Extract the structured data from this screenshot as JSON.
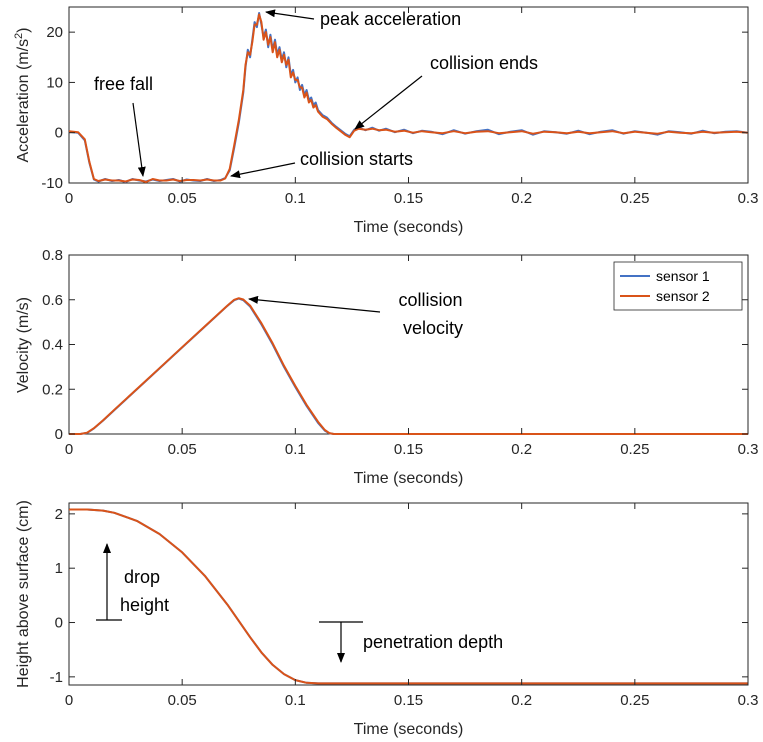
{
  "chart_data": [
    {
      "type": "line",
      "xlabel": "Time (seconds)",
      "ylabel": "Acceleration (m/s2)",
      "ylabel_parts": {
        "base": "Acceleration (m/s",
        "sup": "2",
        "end": ")"
      },
      "xlim": [
        0,
        0.3
      ],
      "ylim": [
        -10,
        25
      ],
      "xticks": [
        0,
        0.05,
        0.1,
        0.15,
        0.2,
        0.25,
        0.3
      ],
      "xtick_labels": [
        "0",
        "0.05",
        "0.1",
        "0.15",
        "0.2",
        "0.25",
        "0.3"
      ],
      "yticks": [
        -10,
        0,
        10,
        20
      ],
      "ytick_labels": [
        "-10",
        "0",
        "10",
        "20"
      ],
      "grid": false,
      "series": [
        {
          "name": "sensor 1",
          "color": "#4472C4",
          "x": [
            0,
            0.004,
            0.007,
            0.009,
            0.011,
            0.013,
            0.016,
            0.019,
            0.022,
            0.025,
            0.028,
            0.031,
            0.034,
            0.037,
            0.04,
            0.043,
            0.046,
            0.049,
            0.052,
            0.055,
            0.058,
            0.061,
            0.064,
            0.067,
            0.069,
            0.071,
            0.073,
            0.075,
            0.077,
            0.078,
            0.079,
            0.08,
            0.081,
            0.082,
            0.083,
            0.084,
            0.085,
            0.086,
            0.087,
            0.088,
            0.089,
            0.09,
            0.091,
            0.092,
            0.093,
            0.094,
            0.095,
            0.096,
            0.097,
            0.098,
            0.099,
            0.1,
            0.101,
            0.102,
            0.103,
            0.104,
            0.105,
            0.106,
            0.107,
            0.108,
            0.109,
            0.11,
            0.112,
            0.114,
            0.116,
            0.118,
            0.12,
            0.122,
            0.124,
            0.126,
            0.128,
            0.131,
            0.134,
            0.137,
            0.14,
            0.144,
            0.148,
            0.152,
            0.156,
            0.16,
            0.165,
            0.17,
            0.175,
            0.18,
            0.185,
            0.19,
            0.195,
            0.2,
            0.205,
            0.21,
            0.215,
            0.22,
            0.225,
            0.23,
            0.235,
            0.24,
            0.245,
            0.25,
            0.255,
            0.26,
            0.265,
            0.27,
            0.275,
            0.28,
            0.285,
            0.29,
            0.295,
            0.3
          ],
          "y": [
            0.2,
            0.0,
            -1.5,
            -6.0,
            -9.3,
            -9.7,
            -9.2,
            -9.6,
            -9.4,
            -9.8,
            -9.2,
            -9.5,
            -9.7,
            -9.3,
            -9.6,
            -9.4,
            -9.2,
            -9.7,
            -9.3,
            -9.5,
            -9.6,
            -9.2,
            -9.6,
            -9.4,
            -9.0,
            -7.5,
            -3.0,
            2.0,
            8.0,
            13.0,
            16.5,
            15.0,
            18.5,
            22.0,
            21.0,
            23.8,
            21.5,
            19.0,
            20.5,
            17.0,
            19.5,
            16.5,
            18.5,
            15.5,
            17.0,
            14.5,
            16.0,
            13.0,
            15.0,
            11.5,
            12.5,
            10.0,
            11.0,
            8.5,
            9.5,
            7.5,
            8.5,
            6.5,
            7.0,
            5.5,
            6.0,
            4.5,
            3.5,
            3.0,
            2.0,
            1.2,
            0.5,
            -0.2,
            -0.7,
            0.6,
            1.0,
            0.5,
            1.0,
            0.4,
            0.8,
            0.1,
            0.6,
            -0.1,
            0.4,
            0.2,
            -0.3,
            0.5,
            -0.2,
            0.3,
            0.6,
            -0.3,
            0.2,
            0.5,
            -0.4,
            0.3,
            0.1,
            -0.2,
            0.4,
            -0.3,
            0.2,
            0.5,
            -0.2,
            0.3,
            0.0,
            -0.4,
            0.3,
            0.1,
            -0.2,
            0.4,
            -0.1,
            0.2,
            0.3,
            0.0
          ]
        },
        {
          "name": "sensor 2",
          "color": "#D95319",
          "x": [
            0,
            0.004,
            0.007,
            0.009,
            0.011,
            0.013,
            0.016,
            0.019,
            0.022,
            0.025,
            0.028,
            0.031,
            0.034,
            0.037,
            0.04,
            0.043,
            0.046,
            0.049,
            0.052,
            0.055,
            0.058,
            0.061,
            0.064,
            0.067,
            0.069,
            0.071,
            0.073,
            0.075,
            0.077,
            0.078,
            0.079,
            0.08,
            0.081,
            0.082,
            0.083,
            0.084,
            0.085,
            0.086,
            0.087,
            0.088,
            0.089,
            0.09,
            0.091,
            0.092,
            0.093,
            0.094,
            0.095,
            0.096,
            0.097,
            0.098,
            0.099,
            0.1,
            0.101,
            0.102,
            0.103,
            0.104,
            0.105,
            0.106,
            0.107,
            0.108,
            0.109,
            0.11,
            0.112,
            0.114,
            0.116,
            0.118,
            0.12,
            0.122,
            0.124,
            0.126,
            0.128,
            0.131,
            0.134,
            0.137,
            0.14,
            0.144,
            0.148,
            0.152,
            0.156,
            0.16,
            0.165,
            0.17,
            0.175,
            0.18,
            0.185,
            0.19,
            0.195,
            0.2,
            0.205,
            0.21,
            0.215,
            0.22,
            0.225,
            0.23,
            0.235,
            0.24,
            0.245,
            0.25,
            0.255,
            0.26,
            0.265,
            0.27,
            0.275,
            0.28,
            0.285,
            0.29,
            0.295,
            0.3
          ],
          "y": [
            0.3,
            0.1,
            -1.3,
            -5.8,
            -9.2,
            -9.6,
            -9.3,
            -9.5,
            -9.5,
            -9.7,
            -9.3,
            -9.4,
            -9.8,
            -9.2,
            -9.5,
            -9.5,
            -9.3,
            -9.6,
            -9.4,
            -9.4,
            -9.5,
            -9.3,
            -9.5,
            -9.5,
            -9.1,
            -7.2,
            -2.5,
            2.5,
            8.5,
            13.5,
            16.0,
            15.5,
            18.0,
            21.5,
            21.5,
            23.5,
            22.0,
            18.5,
            20.0,
            17.5,
            19.0,
            16.0,
            18.0,
            15.0,
            16.5,
            14.0,
            15.5,
            13.5,
            14.5,
            11.0,
            12.0,
            10.5,
            10.5,
            9.0,
            9.0,
            7.0,
            8.0,
            6.0,
            6.5,
            5.0,
            5.5,
            4.2,
            3.2,
            2.7,
            1.8,
            1.0,
            0.3,
            -0.4,
            -0.9,
            0.4,
            0.8,
            0.6,
            0.8,
            0.5,
            0.6,
            0.2,
            0.4,
            0.0,
            0.3,
            0.1,
            -0.1,
            0.3,
            -0.1,
            0.2,
            0.3,
            -0.1,
            0.1,
            0.3,
            -0.2,
            0.2,
            0.1,
            -0.1,
            0.2,
            -0.1,
            0.1,
            0.3,
            -0.1,
            0.2,
            0.0,
            -0.2,
            0.2,
            0.0,
            -0.1,
            0.2,
            0.0,
            0.1,
            0.2,
            0.0
          ]
        }
      ],
      "annotations": [
        {
          "text": "free fall",
          "target": [
            0.032,
            -9.4
          ]
        },
        {
          "text": "peak acceleration",
          "target": [
            0.085,
            23.6
          ]
        },
        {
          "text": "collision ends",
          "target": [
            0.125,
            -0.7
          ]
        },
        {
          "text": "collision starts",
          "target": [
            0.072,
            -9.0
          ]
        }
      ]
    },
    {
      "type": "line",
      "xlabel": "Time (seconds)",
      "ylabel": "Velocity (m/s)",
      "xlim": [
        0,
        0.3
      ],
      "ylim": [
        0,
        0.8
      ],
      "xticks": [
        0,
        0.05,
        0.1,
        0.15,
        0.2,
        0.25,
        0.3
      ],
      "xtick_labels": [
        "0",
        "0.05",
        "0.1",
        "0.15",
        "0.2",
        "0.25",
        "0.3"
      ],
      "yticks": [
        0,
        0.2,
        0.4,
        0.6,
        0.8
      ],
      "ytick_labels": [
        "0",
        "0.2",
        "0.4",
        "0.6",
        "0.8"
      ],
      "grid": false,
      "legend": {
        "placement": "top-right",
        "entries": [
          "sensor 1",
          "sensor 2"
        ]
      },
      "series": [
        {
          "name": "sensor 1",
          "color": "#4472C4",
          "x": [
            0,
            0.005,
            0.008,
            0.011,
            0.015,
            0.02,
            0.03,
            0.04,
            0.05,
            0.06,
            0.07,
            0.073,
            0.075,
            0.077,
            0.08,
            0.085,
            0.09,
            0.095,
            0.1,
            0.105,
            0.11,
            0.113,
            0.115,
            0.117,
            0.12,
            0.15,
            0.2,
            0.25,
            0.3
          ],
          "y": [
            0,
            0,
            0.005,
            0.025,
            0.06,
            0.107,
            0.2,
            0.293,
            0.387,
            0.48,
            0.573,
            0.598,
            0.605,
            0.598,
            0.57,
            0.49,
            0.4,
            0.3,
            0.21,
            0.125,
            0.05,
            0.015,
            0.003,
            0,
            0,
            0,
            0,
            0,
            0
          ]
        },
        {
          "name": "sensor 2",
          "color": "#D95319",
          "x": [
            0,
            0.005,
            0.008,
            0.011,
            0.015,
            0.02,
            0.03,
            0.04,
            0.05,
            0.06,
            0.07,
            0.073,
            0.075,
            0.077,
            0.08,
            0.085,
            0.09,
            0.095,
            0.1,
            0.105,
            0.11,
            0.113,
            0.115,
            0.117,
            0.12,
            0.15,
            0.2,
            0.25,
            0.3
          ],
          "y": [
            0,
            0,
            0.006,
            0.026,
            0.061,
            0.108,
            0.201,
            0.294,
            0.388,
            0.481,
            0.574,
            0.6,
            0.607,
            0.601,
            0.574,
            0.495,
            0.405,
            0.305,
            0.215,
            0.13,
            0.055,
            0.018,
            0.004,
            0,
            0,
            0,
            0,
            0,
            0
          ]
        }
      ],
      "annotations": [
        {
          "text": "collision\nvelocity",
          "lines": [
            "collision",
            "velocity"
          ],
          "target": [
            0.077,
            0.6
          ]
        }
      ]
    },
    {
      "type": "line",
      "xlabel": "Time (seconds)",
      "ylabel": "Height above surface (cm)",
      "xlim": [
        0,
        0.3
      ],
      "ylim": [
        -1.15,
        2.2
      ],
      "xticks": [
        0,
        0.05,
        0.1,
        0.15,
        0.2,
        0.25,
        0.3
      ],
      "xtick_labels": [
        "0",
        "0.05",
        "0.1",
        "0.15",
        "0.2",
        "0.25",
        "0.3"
      ],
      "yticks": [
        -1,
        0,
        1,
        2
      ],
      "ytick_labels": [
        "-1",
        "0",
        "1",
        "2"
      ],
      "grid": false,
      "series": [
        {
          "name": "sensor 1",
          "color": "#4472C4",
          "x": [
            0,
            0.005,
            0.008,
            0.015,
            0.02,
            0.03,
            0.04,
            0.05,
            0.06,
            0.07,
            0.075,
            0.08,
            0.085,
            0.09,
            0.095,
            0.1,
            0.105,
            0.11,
            0.115,
            0.12,
            0.15,
            0.2,
            0.25,
            0.3
          ],
          "y": [
            2.08,
            2.08,
            2.08,
            2.06,
            2.02,
            1.87,
            1.63,
            1.29,
            0.86,
            0.33,
            0.03,
            -0.27,
            -0.55,
            -0.78,
            -0.95,
            -1.06,
            -1.11,
            -1.12,
            -1.12,
            -1.12,
            -1.12,
            -1.12,
            -1.12,
            -1.12
          ]
        },
        {
          "name": "sensor 2",
          "color": "#D95319",
          "x": [
            0,
            0.005,
            0.008,
            0.015,
            0.02,
            0.03,
            0.04,
            0.05,
            0.06,
            0.07,
            0.075,
            0.08,
            0.085,
            0.09,
            0.095,
            0.1,
            0.105,
            0.11,
            0.115,
            0.12,
            0.15,
            0.2,
            0.25,
            0.3
          ],
          "y": [
            2.08,
            2.08,
            2.08,
            2.06,
            2.02,
            1.87,
            1.63,
            1.29,
            0.86,
            0.33,
            0.03,
            -0.27,
            -0.55,
            -0.78,
            -0.95,
            -1.06,
            -1.11,
            -1.12,
            -1.12,
            -1.12,
            -1.12,
            -1.12,
            -1.12,
            -1.12
          ]
        }
      ],
      "annotations": [
        {
          "text": "drop\nheight",
          "lines": [
            "drop",
            "height"
          ],
          "arrow_from": [
            0.017,
            0
          ],
          "arrow_to": [
            0.017,
            1.3
          ]
        },
        {
          "text": "penetration depth",
          "arrow_from": [
            0.122,
            0
          ],
          "arrow_to": [
            0.122,
            -0.75
          ]
        }
      ]
    }
  ]
}
